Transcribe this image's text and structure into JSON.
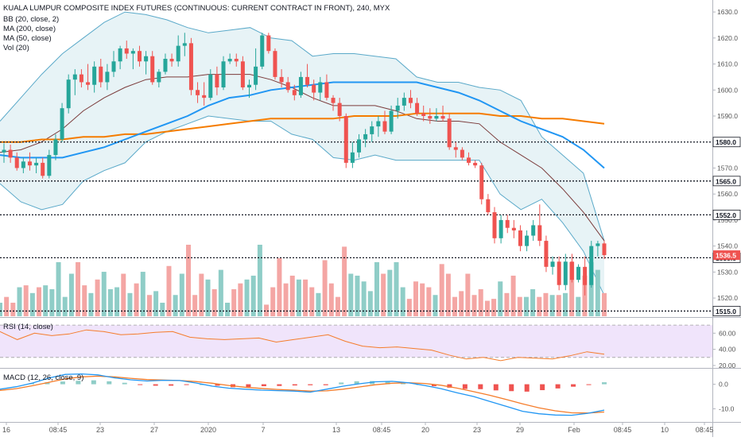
{
  "header": {
    "title": "KUALA LUMPUR COMPOSITE INDEX FUTURES (CONTINUOUS: CURRENT CONTRACT IN FRONT), 240, MYX",
    "indicators": [
      "BB (20, close, 2)",
      "MA (200, close)",
      "MA (50, close)",
      "Vol (20)"
    ]
  },
  "panes": {
    "rsi_title": "RSI (14, close)",
    "macd_title": "MACD (12, 26, close, 9)"
  },
  "colors": {
    "up": "#26a69a",
    "down": "#ef5350",
    "vol_up": "#8fcdc7",
    "vol_down": "#f4a6a4",
    "bb": "#5aa9c9",
    "bb_fill": "#e4f2f5",
    "ma50": "#2196f3",
    "ma200": "#f57c00",
    "ma20": "#7b3b3b",
    "rsi": "#f57c2a",
    "rsi_band": "#f0e4fb",
    "macd": "#2196f3",
    "signal": "#f57c2a"
  },
  "chart_data": [
    {
      "type": "candlestick",
      "title": "KUALA LUMPUR COMPOSITE INDEX FUTURES (CONTINUOUS: CURRENT CONTRACT IN FRONT), 240, MYX",
      "y_axis": {
        "ticks": [
          1520.0,
          1530.0,
          1540.0,
          1550.0,
          1560.0,
          1570.0,
          1580.0,
          1590.0,
          1600.0,
          1610.0,
          1620.0,
          1630.0
        ],
        "range": [
          1513,
          1634
        ]
      },
      "x_axis": {
        "tick_labels": [
          "16",
          "08:45",
          "23",
          "27",
          "2020",
          "7",
          "13",
          "08:45",
          "20",
          "23",
          "29",
          "Feb",
          "08:45",
          "10",
          "08:45"
        ]
      },
      "horizontal_levels": [
        {
          "value": 1580.0,
          "label": "1580.0"
        },
        {
          "value": 1565.0,
          "label": "1565.0"
        },
        {
          "value": 1552.0,
          "label": "1552.0"
        },
        {
          "value": 1535.5,
          "label": "1535.5"
        },
        {
          "value": 1515.0,
          "label": "1515.0"
        }
      ],
      "last_price": {
        "value": 1536.5,
        "label": "1536.5"
      },
      "candles": [
        [
          1576.0,
          1579.5,
          1572.0,
          1577.0
        ],
        [
          1577.0,
          1579.0,
          1572.0,
          1574.0
        ],
        [
          1574.0,
          1576.0,
          1569.0,
          1570.0
        ],
        [
          1570.0,
          1574.0,
          1568.0,
          1572.5
        ],
        [
          1572.5,
          1576.0,
          1569.0,
          1571.0
        ],
        [
          1571.0,
          1574.0,
          1568.0,
          1572.0
        ],
        [
          1572.0,
          1574.0,
          1566.0,
          1567.0
        ],
        [
          1567.0,
          1577.0,
          1566.0,
          1575.0
        ],
        [
          1575.0,
          1583.0,
          1573.0,
          1581.0
        ],
        [
          1581.0,
          1595.0,
          1580.0,
          1593.0
        ],
        [
          1593.0,
          1606.0,
          1591.0,
          1604.0
        ],
        [
          1604.0,
          1608.0,
          1598.0,
          1606.0
        ],
        [
          1606.0,
          1608.0,
          1601.0,
          1603.0
        ],
        [
          1603.0,
          1610.0,
          1600.0,
          1602.0
        ],
        [
          1602.0,
          1611.0,
          1599.0,
          1609.0
        ],
        [
          1609.0,
          1612.0,
          1601.0,
          1603.0
        ],
        [
          1603.0,
          1610.0,
          1600.0,
          1607.0
        ],
        [
          1607.0,
          1615.0,
          1605.0,
          1611.0
        ],
        [
          1611.0,
          1617.0,
          1608.0,
          1616.0
        ],
        [
          1616.0,
          1619.0,
          1612.0,
          1614.0
        ],
        [
          1614.0,
          1616.0,
          1608.0,
          1615.0
        ],
        [
          1615.0,
          1617.0,
          1609.0,
          1611.0
        ],
        [
          1611.0,
          1615.0,
          1606.0,
          1613.0
        ],
        [
          1613.0,
          1615.0,
          1602.0,
          1603.0
        ],
        [
          1603.0,
          1608.0,
          1601.0,
          1607.0
        ],
        [
          1607.0,
          1614.0,
          1606.0,
          1612.0
        ],
        [
          1612.0,
          1614.0,
          1609.0,
          1611.0
        ],
        [
          1611.0,
          1621.0,
          1609.0,
          1617.0
        ],
        [
          1617.0,
          1622.0,
          1613.0,
          1618.0
        ],
        [
          1618.0,
          1620.0,
          1598.0,
          1600.0
        ],
        [
          1600.0,
          1603.0,
          1595.0,
          1598.0
        ],
        [
          1598.0,
          1603.0,
          1594.0,
          1597.0
        ],
        [
          1597.0,
          1608.0,
          1596.0,
          1606.0
        ],
        [
          1606.0,
          1609.0,
          1598.0,
          1601.0
        ],
        [
          1601.0,
          1613.0,
          1600.0,
          1611.0
        ],
        [
          1611.0,
          1614.0,
          1610.0,
          1612.0
        ],
        [
          1612.0,
          1614.0,
          1609.0,
          1611.0
        ],
        [
          1611.0,
          1613.0,
          1600.0,
          1601.0
        ],
        [
          1601.0,
          1604.0,
          1597.0,
          1602.0
        ],
        [
          1602.0,
          1616.0,
          1600.0,
          1609.0
        ],
        [
          1609.0,
          1622.0,
          1608.0,
          1621.0
        ],
        [
          1621.0,
          1622.0,
          1614.0,
          1615.0
        ],
        [
          1615.0,
          1616.0,
          1604.0,
          1605.0
        ],
        [
          1605.0,
          1608.0,
          1601.0,
          1603.0
        ],
        [
          1603.0,
          1605.0,
          1599.0,
          1600.0
        ],
        [
          1600.0,
          1602.0,
          1596.0,
          1598.0
        ],
        [
          1598.0,
          1607.0,
          1597.0,
          1605.0
        ],
        [
          1605.0,
          1610.0,
          1601.0,
          1602.0
        ],
        [
          1602.0,
          1604.0,
          1596.0,
          1599.0
        ],
        [
          1599.0,
          1605.0,
          1596.0,
          1603.0
        ],
        [
          1603.0,
          1606.0,
          1596.0,
          1597.0
        ],
        [
          1597.0,
          1598.0,
          1592.0,
          1595.0
        ],
        [
          1595.0,
          1597.0,
          1588.0,
          1590.0
        ],
        [
          1590.0,
          1591.0,
          1570.0,
          1572.0
        ],
        [
          1572.0,
          1580.0,
          1570.0,
          1576.0
        ],
        [
          1576.0,
          1583.0,
          1574.0,
          1581.0
        ],
        [
          1581.0,
          1585.0,
          1578.0,
          1583.0
        ],
        [
          1583.0,
          1588.0,
          1580.0,
          1586.0
        ],
        [
          1586.0,
          1590.0,
          1582.0,
          1588.0
        ],
        [
          1588.0,
          1592.0,
          1583.0,
          1584.0
        ],
        [
          1584.0,
          1594.0,
          1583.0,
          1592.0
        ],
        [
          1592.0,
          1597.0,
          1589.0,
          1594.0
        ],
        [
          1594.0,
          1599.0,
          1592.0,
          1597.0
        ],
        [
          1597.0,
          1600.0,
          1593.0,
          1595.0
        ],
        [
          1595.0,
          1597.0,
          1590.0,
          1591.0
        ],
        [
          1591.0,
          1594.0,
          1588.0,
          1590.0
        ],
        [
          1590.0,
          1593.0,
          1587.0,
          1589.0
        ],
        [
          1589.0,
          1593.0,
          1588.0,
          1590.0
        ],
        [
          1590.0,
          1594.0,
          1588.0,
          1589.0
        ],
        [
          1589.0,
          1591.0,
          1577.0,
          1578.0
        ],
        [
          1578.0,
          1580.0,
          1574.0,
          1577.0
        ],
        [
          1577.0,
          1578.0,
          1573.0,
          1574.0
        ],
        [
          1574.0,
          1576.0,
          1571.0,
          1572.0
        ],
        [
          1572.0,
          1573.0,
          1570.0,
          1571.0
        ],
        [
          1571.0,
          1572.0,
          1556.0,
          1558.0
        ],
        [
          1558.0,
          1560.0,
          1552.0,
          1553.0
        ],
        [
          1553.0,
          1555.0,
          1541.0,
          1543.0
        ],
        [
          1543.0,
          1552.0,
          1541.0,
          1550.0
        ],
        [
          1550.0,
          1552.0,
          1545.0,
          1547.0
        ],
        [
          1547.0,
          1550.0,
          1543.0,
          1546.0
        ],
        [
          1546.0,
          1548.0,
          1538.0,
          1540.0
        ],
        [
          1540.0,
          1546.0,
          1538.0,
          1544.0
        ],
        [
          1544.0,
          1550.0,
          1542.0,
          1548.0
        ],
        [
          1548.0,
          1556.0,
          1540.0,
          1542.0
        ],
        [
          1542.0,
          1544.0,
          1530.0,
          1532.0
        ],
        [
          1532.0,
          1536.0,
          1529.0,
          1534.0
        ],
        [
          1534.0,
          1536.0,
          1523.0,
          1525.0
        ],
        [
          1525.0,
          1537.0,
          1523.0,
          1534.0
        ],
        [
          1534.0,
          1537.0,
          1526.0,
          1527.0
        ],
        [
          1527.0,
          1533.0,
          1526.0,
          1532.0
        ],
        [
          1532.0,
          1536.0,
          1521.0,
          1525.0
        ],
        [
          1525.0,
          1542.0,
          1524.0,
          1540.0
        ],
        [
          1540.0,
          1542.0,
          1536.0,
          1541.0
        ],
        [
          1541.0,
          1542.0,
          1535.0,
          1536.5
        ]
      ],
      "series": [
        {
          "name": "BB (20, close, 2)",
          "upper": [
            1588,
            1597,
            1606,
            1614,
            1620,
            1626,
            1630,
            1629,
            1627,
            1624,
            1622,
            1623,
            1624,
            1620,
            1619,
            1613,
            1614,
            1614,
            1613,
            1612,
            1605,
            1603,
            1603,
            1601,
            1600,
            1596,
            1582,
            1575,
            1568,
            1542
          ],
          "middle": [
            1576,
            1577,
            1580,
            1585,
            1592,
            1597,
            1601,
            1604,
            1605,
            1605,
            1606,
            1606,
            1606,
            1604,
            1601,
            1597,
            1594,
            1594,
            1594,
            1592,
            1589,
            1588,
            1588,
            1587,
            1580,
            1575,
            1570,
            1562,
            1553,
            1542
          ],
          "lower": [
            1564,
            1557,
            1554,
            1556,
            1565,
            1569,
            1572,
            1580,
            1584,
            1587,
            1590,
            1589,
            1588,
            1588,
            1583,
            1581,
            1574,
            1573,
            1575,
            1573,
            1573,
            1573,
            1573,
            1573,
            1560,
            1554,
            1558,
            1549,
            1538,
            1521
          ]
        },
        {
          "name": "MA (200, close)",
          "values": [
            1580,
            1580,
            1581,
            1581,
            1582,
            1582,
            1583,
            1583,
            1584,
            1585,
            1586,
            1587,
            1588,
            1589,
            1589,
            1589,
            1589,
            1590,
            1590,
            1590,
            1591,
            1591,
            1591,
            1591,
            1590,
            1590,
            1589,
            1589,
            1588,
            1587
          ]
        },
        {
          "name": "MA (50, close)",
          "values": [
            1575,
            1574,
            1574,
            1574,
            1576,
            1578,
            1581,
            1584,
            1587,
            1590,
            1594,
            1597,
            1598,
            1600,
            1601,
            1602,
            1603,
            1603,
            1603,
            1603,
            1603,
            1601,
            1599,
            1596,
            1592,
            1588,
            1585,
            1582,
            1577,
            1570
          ]
        }
      ]
    },
    {
      "type": "bar",
      "series": [
        {
          "name": "Vol (20)"
        }
      ],
      "values": [
        7,
        10,
        7,
        15,
        16,
        12,
        15,
        16,
        14,
        28,
        10,
        22,
        28,
        16,
        12,
        19,
        23,
        14,
        15,
        22,
        12,
        17,
        23,
        11,
        13,
        7,
        26,
        11,
        22,
        37,
        11,
        22,
        19,
        14,
        24,
        7,
        14,
        17,
        19,
        21,
        37,
        6,
        15,
        30,
        17,
        21,
        19,
        19,
        15,
        12,
        29,
        17,
        10,
        36,
        22,
        21,
        18,
        13,
        28,
        22,
        24,
        28,
        15,
        9,
        18,
        17,
        15,
        11,
        27,
        22,
        10,
        13,
        22,
        11,
        14,
        8,
        9,
        18,
        12,
        21,
        10,
        10,
        14,
        10,
        12,
        11,
        11,
        12,
        28,
        10,
        21,
        28,
        24,
        12
      ],
      "baseline_label": "1515.0"
    },
    {
      "type": "line",
      "title": "RSI (14, close)",
      "y_axis": {
        "ticks": [
          20.0,
          40.0,
          60.0
        ],
        "range": [
          18,
          78
        ]
      },
      "band": [
        30,
        70
      ],
      "values": [
        62,
        52,
        60,
        57,
        59,
        64,
        62,
        58,
        59,
        61,
        62,
        55,
        53,
        52,
        53,
        54,
        49,
        52,
        55,
        58,
        50,
        44,
        42,
        43,
        41,
        39,
        33,
        28,
        30,
        26,
        30,
        29,
        28,
        32,
        37,
        34
      ]
    },
    {
      "type": "line",
      "title": "MACD (12, 26, close, 9)",
      "y_axis": {
        "ticks": [
          -10.0,
          0.0
        ],
        "range": [
          -15,
          6
        ]
      },
      "series": [
        {
          "name": "MACD",
          "values": [
            -2.0,
            -1.0,
            0.5,
            2.5,
            4.0,
            4.2,
            3.8,
            2.6,
            1.8,
            1.3,
            1.6,
            1.5,
            0.5,
            -0.8,
            -1.6,
            -2.0,
            -2.4,
            -2.6,
            -2.8,
            -3.2,
            -2.0,
            -0.8,
            0.2,
            1.0,
            1.2,
            0.6,
            -0.5,
            -1.8,
            -3.5,
            -5.0,
            -7.0,
            -9.0,
            -11.0,
            -12.0,
            -12.5,
            -12.6,
            -11.8,
            -10.5
          ]
        },
        {
          "name": "Signal",
          "values": [
            -2.5,
            -1.8,
            -0.6,
            0.8,
            2.2,
            3.0,
            3.3,
            3.0,
            2.4,
            1.9,
            1.7,
            1.5,
            1.1,
            0.4,
            -0.5,
            -1.2,
            -1.7,
            -2.1,
            -2.4,
            -2.8,
            -2.7,
            -2.0,
            -1.1,
            -0.2,
            0.4,
            0.6,
            0.3,
            -0.4,
            -1.6,
            -3.0,
            -4.5,
            -6.2,
            -8.0,
            -9.6,
            -10.8,
            -11.6,
            -11.7,
            -11.3
          ]
        }
      ],
      "histogram": [
        0.5,
        0.8,
        1.1,
        1.4,
        1.6,
        1.2,
        0.6,
        -0.2,
        -0.6,
        -0.6,
        -0.1,
        0.0,
        -0.6,
        -1.2,
        -1.1,
        -0.8,
        -0.7,
        -0.5,
        -0.4,
        -0.4,
        0.7,
        1.2,
        1.3,
        1.2,
        0.8,
        0.0,
        -0.8,
        -1.4,
        -1.9,
        -2.0,
        -2.5,
        -2.8,
        -3.0,
        -2.4,
        -1.7,
        -1.0,
        -0.1,
        0.8
      ]
    }
  ]
}
